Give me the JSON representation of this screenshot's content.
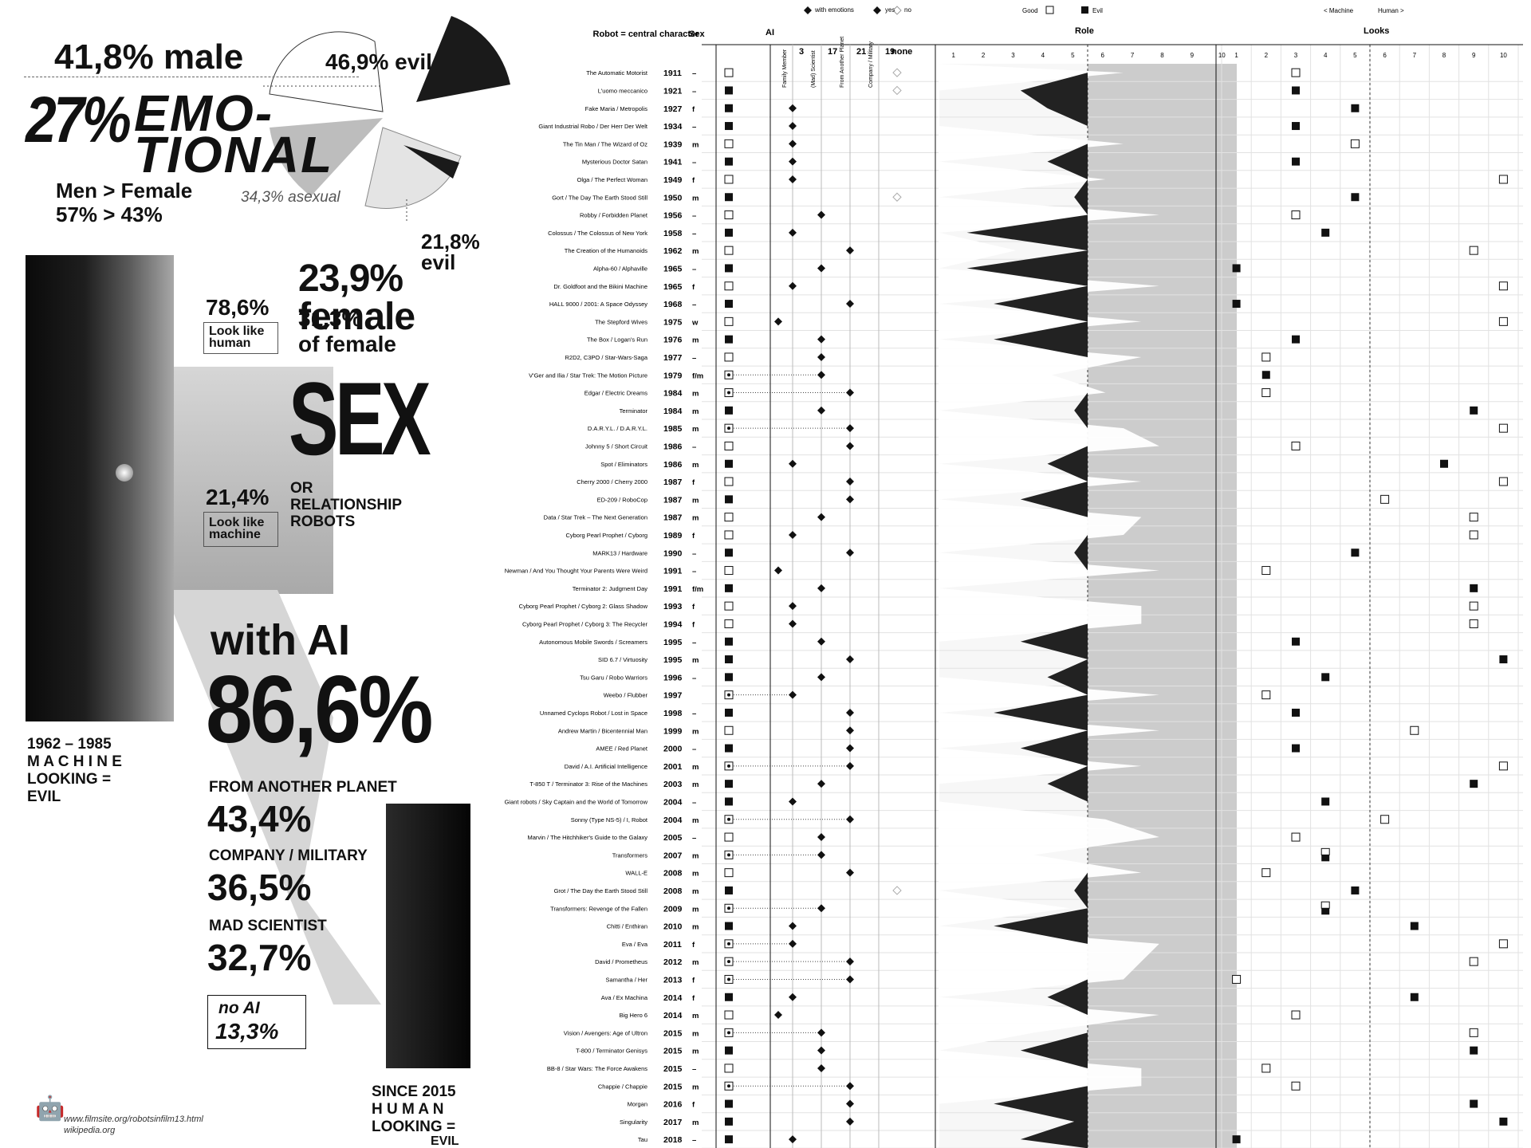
{
  "left": {
    "male": "41,8% male",
    "evil": "46,9% evil",
    "emo1": "27%",
    "emo2": "EMO-",
    "emo3": "TIONAL",
    "men_female": "Men > Female",
    "men_female_pct": "57% > 43%",
    "asexual": "34,3% asexual",
    "evil2": "21,8% evil",
    "female": "23,9% female",
    "look_human_pct": "78,6%",
    "look_human": "Look like human",
    "female_pct": "31,3%",
    "of_female": "of female",
    "sex": "SEX",
    "look_machine_pct": "21,4%",
    "look_machine": "Look like machine",
    "or_rel": "OR RELATIONSHIP ROBOTS",
    "with_ai": "with AI",
    "ai_pct": "86,6%",
    "era_1": "1962 – 1985",
    "era_2": "M A C H I N E",
    "era_3": "LOOKING =",
    "era_4": "EVIL",
    "planet_label": "FROM ANOTHER PLANET",
    "planet_pct": "43,4%",
    "company_label": "COMPANY / MILITARY",
    "company_pct": "36,5%",
    "mad_label": "MAD SCIENTIST",
    "mad_pct": "32,7%",
    "noai_label": "no AI",
    "noai_pct": "13,3%",
    "since_1": "SINCE 2015",
    "since_2": "H U M A N",
    "since_3": "LOOKING =",
    "since_4": "EVIL",
    "source_1": "www.filmsite.org/robotsinfilm13.html",
    "source_2": "wikipedia.org"
  },
  "chart_data": {
    "type": "table",
    "headers": {
      "robot": "Robot = central character",
      "sex": "Sex",
      "ai": "AI",
      "role": "Role",
      "looks": "Looks",
      "none": "none"
    },
    "legend": {
      "with_emotions": "with emotions",
      "yes": "yes",
      "no": "no",
      "good": "Good",
      "evil": "Evil",
      "machine": "< Machine",
      "human": "Human >"
    },
    "ai_columns": [
      "Family Member",
      "(Mad) Scientist",
      "From Another Planet",
      "Company / Military"
    ],
    "ai_numbers": [
      "3",
      "17",
      "21",
      "19"
    ],
    "scale": [
      "1",
      "2",
      "3",
      "4",
      "5",
      "6",
      "7",
      "8",
      "9",
      "10"
    ],
    "colors": {
      "good_fill": "#f2f2f2",
      "evil_fill": "#222222",
      "role_bg": "#cccccc"
    },
    "robots": [
      {
        "n": "The Automatic Motorist",
        "y": "1911",
        "s": "–",
        "ge": "g",
        "ai": 4,
        "a": "no",
        "role": 7,
        "look": 3,
        "lg": "g"
      },
      {
        "n": "L'uomo meccanico",
        "y": "1921",
        "s": "–",
        "ge": "e",
        "ai": 4,
        "a": "no",
        "role": 3,
        "look": 3,
        "lg": "e"
      },
      {
        "n": "Fake Maria / Metropolis",
        "y": "1927",
        "s": "f",
        "ge": "e",
        "ai": 1,
        "a": "yes",
        "role": 4,
        "look": 5,
        "lg": "e"
      },
      {
        "n": "Giant Industrial Robo / Der Herr Der Welt",
        "y": "1934",
        "s": "–",
        "ge": "e",
        "ai": 1,
        "a": "yes",
        "role": 6,
        "look": 3,
        "lg": "e"
      },
      {
        "n": "The Tin Man / The Wizard of Oz",
        "y": "1939",
        "s": "m",
        "ge": "g",
        "ai": 1,
        "a": "yes",
        "role": 7,
        "look": 5,
        "lg": "g"
      },
      {
        "n": "Mysterious Doctor Satan",
        "y": "1941",
        "s": "–",
        "ge": "e",
        "ai": 1,
        "a": "yes",
        "role": 4,
        "look": 3,
        "lg": "e"
      },
      {
        "n": "Olga / The Perfect Woman",
        "y": "1949",
        "s": "f",
        "ge": "g",
        "ai": 1,
        "a": "yes",
        "role": 6,
        "look": 10,
        "lg": "g"
      },
      {
        "n": "Gort / The Day The Earth Stood Still",
        "y": "1950",
        "s": "m",
        "ge": "e",
        "ai": 4,
        "a": "no",
        "role": 5,
        "look": 5,
        "lg": "e"
      },
      {
        "n": "Robby / Forbidden Planet",
        "y": "1956",
        "s": "–",
        "ge": "g",
        "ai": 2,
        "a": "yes",
        "role": 9,
        "look": 3,
        "lg": "g"
      },
      {
        "n": "Colossus / The Colossus of New York",
        "y": "1958",
        "s": "–",
        "ge": "e",
        "ai": 1,
        "a": "yes",
        "role": 1,
        "look": 4,
        "lg": "e"
      },
      {
        "n": "The Creation of the Humanoids",
        "y": "1962",
        "s": "m",
        "ge": "g",
        "ai": 3,
        "a": "yes",
        "role": 1,
        "look": 9,
        "lg": "g"
      },
      {
        "n": "Alpha-60 / Alphaville",
        "y": "1965",
        "s": "–",
        "ge": "e",
        "ai": 2,
        "a": "yes",
        "role": 1,
        "look": 1,
        "lg": "e"
      },
      {
        "n": "Dr. Goldfoot and the Bikini Machine",
        "y": "1965",
        "s": "f",
        "ge": "g",
        "ai": 1,
        "a": "yes",
        "role": 9,
        "look": 10,
        "lg": "g"
      },
      {
        "n": "HALL 9000 / 2001: A Space Odyssey",
        "y": "1968",
        "s": "–",
        "ge": "e",
        "ai": 3,
        "a": "yes",
        "role": 2,
        "look": 1,
        "lg": "e"
      },
      {
        "n": "The Stepford Wives",
        "y": "1975",
        "s": "w",
        "ge": "g",
        "ai": 0,
        "a": "yes",
        "role": 8,
        "look": 10,
        "lg": "g"
      },
      {
        "n": "The Box / Logan's Run",
        "y": "1976",
        "s": "m",
        "ge": "e",
        "ai": 2,
        "a": "yes",
        "role": 2,
        "look": 3,
        "lg": "e"
      },
      {
        "n": "R2D2, C3PO / Star-Wars-Saga",
        "y": "1977",
        "s": "–",
        "ge": "g",
        "ai": 2,
        "a": "yes",
        "role": 8,
        "look": 2,
        "lg": "g"
      },
      {
        "n": "V'Ger and Ilia / Star Trek: The Motion Picture",
        "y": "1979",
        "s": "f/m",
        "ge": "b",
        "ai": 2,
        "a": "yes",
        "role": 3,
        "look": 2,
        "lg": "e"
      },
      {
        "n": "Edgar / Electric Dreams",
        "y": "1984",
        "s": "m",
        "ge": "b",
        "ai": 3,
        "a": "yes",
        "role": 6,
        "look": 2,
        "lg": "g"
      },
      {
        "n": "Terminator",
        "y": "1984",
        "s": "m",
        "ge": "e",
        "ai": 2,
        "a": "yes",
        "role": 5,
        "look": 9,
        "lg": "e"
      },
      {
        "n": "D.A.R.Y.L. / D.A.R.Y.L.",
        "y": "1985",
        "s": "m",
        "ge": "b",
        "ai": 3,
        "a": "yes",
        "role": 7,
        "look": 10,
        "lg": "g"
      },
      {
        "n": "Johnny 5 / Short Circuit",
        "y": "1986",
        "s": "–",
        "ge": "g",
        "ai": 3,
        "a": "yes",
        "role": 9,
        "look": 3,
        "lg": "g"
      },
      {
        "n": "Spot / Eliminators",
        "y": "1986",
        "s": "m",
        "ge": "e",
        "ai": 1,
        "a": "yes",
        "role": 4,
        "look": 8,
        "lg": "e"
      },
      {
        "n": "Cherry 2000 / Cherry 2000",
        "y": "1987",
        "s": "f",
        "ge": "g",
        "ai": 3,
        "a": "yes",
        "role": 8,
        "look": 10,
        "lg": "g"
      },
      {
        "n": "ED-209 / RoboCop",
        "y": "1987",
        "s": "m",
        "ge": "e",
        "ai": 3,
        "a": "yes",
        "role": 3,
        "look": 6,
        "lg": "g"
      },
      {
        "n": "Data / Star Trek – The Next Generation",
        "y": "1987",
        "s": "m",
        "ge": "g",
        "ai": 2,
        "a": "yes",
        "role": 8,
        "look": 9,
        "lg": "g"
      },
      {
        "n": "Cyborg Pearl Prophet / Cyborg",
        "y": "1989",
        "s": "f",
        "ge": "g",
        "ai": 1,
        "a": "yes",
        "role": 7,
        "look": 9,
        "lg": "g"
      },
      {
        "n": "MARK13 / Hardware",
        "y": "1990",
        "s": "–",
        "ge": "e",
        "ai": 3,
        "a": "yes",
        "role": 5,
        "look": 5,
        "lg": "e"
      },
      {
        "n": "Newman / And You Thought Your Parents Were Weird",
        "y": "1991",
        "s": "–",
        "ge": "g",
        "ai": 0,
        "a": "yes",
        "role": 9,
        "look": 2,
        "lg": "g"
      },
      {
        "n": "Terminator 2: Judgment Day",
        "y": "1991",
        "s": "f/m",
        "ge": "e",
        "ai": 2,
        "a": "yes",
        "role": 9,
        "look": 9,
        "lg": "e"
      },
      {
        "n": "Cyborg Pearl Prophet / Cyborg 2: Glass Shadow",
        "y": "1993",
        "s": "f",
        "ge": "g",
        "ai": 1,
        "a": "yes",
        "role": 8,
        "look": 9,
        "lg": "g"
      },
      {
        "n": "Cyborg Pearl Prophet / Cyborg 3: The Recycler",
        "y": "1994",
        "s": "f",
        "ge": "g",
        "ai": 1,
        "a": "yes",
        "role": 8,
        "look": 9,
        "lg": "g"
      },
      {
        "n": "Autonomous Mobile Swords / Screamers",
        "y": "1995",
        "s": "–",
        "ge": "e",
        "ai": 2,
        "a": "yes",
        "role": 3,
        "look": 3,
        "lg": "e"
      },
      {
        "n": "SID 6.7 / Virtuosity",
        "y": "1995",
        "s": "m",
        "ge": "e",
        "ai": 3,
        "a": "yes",
        "role": 9,
        "look": 10,
        "lg": "e"
      },
      {
        "n": "Tsu Garu / Robo Warriors",
        "y": "1996",
        "s": "–",
        "ge": "e",
        "ai": 2,
        "a": "yes",
        "role": 4,
        "look": 4,
        "lg": "e"
      },
      {
        "n": "Weebo / Flubber",
        "y": "1997",
        "s": "",
        "ge": "b",
        "ai": 1,
        "a": "yes",
        "role": 9,
        "look": 2,
        "lg": "g"
      },
      {
        "n": "Unnamed Cyclops Robot / Lost in Space",
        "y": "1998",
        "s": "–",
        "ge": "e",
        "ai": 3,
        "a": "yes",
        "role": 2,
        "look": 3,
        "lg": "e"
      },
      {
        "n": "Andrew Martin / Bicentennial Man",
        "y": "1999",
        "s": "m",
        "ge": "g",
        "ai": 3,
        "a": "yes",
        "role": 9,
        "look": 7,
        "lg": "g"
      },
      {
        "n": "AMEE / Red Planet",
        "y": "2000",
        "s": "–",
        "ge": "e",
        "ai": 3,
        "a": "yes",
        "role": 3,
        "look": 3,
        "lg": "e"
      },
      {
        "n": "David / A.I. Artificial Intelligence",
        "y": "2001",
        "s": "m",
        "ge": "b",
        "ai": 3,
        "a": "yes",
        "role": 8,
        "look": 10,
        "lg": "g"
      },
      {
        "n": "T-850 T / Terminator 3: Rise of the Machines",
        "y": "2003",
        "s": "m",
        "ge": "e",
        "ai": 2,
        "a": "yes",
        "role": 4,
        "look": 9,
        "lg": "e"
      },
      {
        "n": "Giant robots / Sky Captain and the World of Tomorrow",
        "y": "2004",
        "s": "–",
        "ge": "e",
        "ai": 1,
        "a": "yes",
        "role": 6,
        "look": 4,
        "lg": "e"
      },
      {
        "n": "Sonny (Type NS-5) / I, Robot",
        "y": "2004",
        "s": "m",
        "ge": "b",
        "ai": 3,
        "a": "yes",
        "role": 6,
        "look": 6,
        "lg": "g"
      },
      {
        "n": "Marvin / The Hitchhiker's Guide to the Galaxy",
        "y": "2005",
        "s": "–",
        "ge": "g",
        "ai": 2,
        "a": "yes",
        "role": 9,
        "look": 3,
        "lg": "g"
      },
      {
        "n": "Transformers",
        "y": "2007",
        "s": "m",
        "ge": "b",
        "ai": 2,
        "a": "yes",
        "role": 2,
        "look": 4,
        "lg": "b"
      },
      {
        "n": "WALL-E",
        "y": "2008",
        "s": "m",
        "ge": "g",
        "ai": 3,
        "a": "yes",
        "role": 8,
        "look": 2,
        "lg": "g"
      },
      {
        "n": "Grot / The Day the Earth Stood Still",
        "y": "2008",
        "s": "m",
        "ge": "e",
        "ai": 4,
        "a": "no",
        "role": 5,
        "look": 5,
        "lg": "e"
      },
      {
        "n": "Transformers: Revenge of the Fallen",
        "y": "2009",
        "s": "m",
        "ge": "b",
        "ai": 2,
        "a": "yes",
        "role": 4,
        "look": 4,
        "lg": "b"
      },
      {
        "n": "Chitti / Enthiran",
        "y": "2010",
        "s": "m",
        "ge": "e",
        "ai": 1,
        "a": "yes",
        "role": 2,
        "look": 7,
        "lg": "e"
      },
      {
        "n": "Eva / Eva",
        "y": "2011",
        "s": "f",
        "ge": "b",
        "ai": 1,
        "a": "yes",
        "role": 9,
        "look": 10,
        "lg": "g"
      },
      {
        "n": "David / Prometheus",
        "y": "2012",
        "s": "m",
        "ge": "b",
        "ai": 3,
        "a": "yes",
        "role": 8,
        "look": 9,
        "lg": "g"
      },
      {
        "n": "Samantha / Her",
        "y": "2013",
        "s": "f",
        "ge": "b",
        "ai": 3,
        "a": "yes",
        "role": 7,
        "look": 1,
        "lg": "g"
      },
      {
        "n": "Ava / Ex Machina",
        "y": "2014",
        "s": "f",
        "ge": "e",
        "ai": 1,
        "a": "yes",
        "role": 4,
        "look": 7,
        "lg": "e"
      },
      {
        "n": "Big Hero 6",
        "y": "2014",
        "s": "m",
        "ge": "g",
        "ai": 0,
        "a": "yes",
        "role": 9,
        "look": 3,
        "lg": "g"
      },
      {
        "n": "Vision / Avengers: Age of Ultron",
        "y": "2015",
        "s": "m",
        "ge": "b",
        "ai": 2,
        "a": "yes",
        "role": 2,
        "look": 9,
        "lg": "g"
      },
      {
        "n": "T-800 / Terminator Genisys",
        "y": "2015",
        "s": "m",
        "ge": "e",
        "ai": 2,
        "a": "yes",
        "role": 3,
        "look": 9,
        "lg": "e"
      },
      {
        "n": "BB-8 / Star Wars: The Force Awakens",
        "y": "2015",
        "s": "–",
        "ge": "g",
        "ai": 2,
        "a": "yes",
        "role": 8,
        "look": 2,
        "lg": "g"
      },
      {
        "n": "Chappie / Chappie",
        "y": "2015",
        "s": "m",
        "ge": "b",
        "ai": 3,
        "a": "yes",
        "role": 8,
        "look": 3,
        "lg": "g"
      },
      {
        "n": "Morgan",
        "y": "2016",
        "s": "f",
        "ge": "e",
        "ai": 3,
        "a": "yes",
        "role": 2,
        "look": 9,
        "lg": "e"
      },
      {
        "n": "Singularity",
        "y": "2017",
        "s": "m",
        "ge": "e",
        "ai": 3,
        "a": "yes",
        "role": 5,
        "look": 10,
        "lg": "e"
      },
      {
        "n": "Tau",
        "y": "2018",
        "s": "–",
        "ge": "e",
        "ai": 1,
        "a": "yes",
        "role": 3,
        "look": 1,
        "lg": "e"
      }
    ]
  }
}
